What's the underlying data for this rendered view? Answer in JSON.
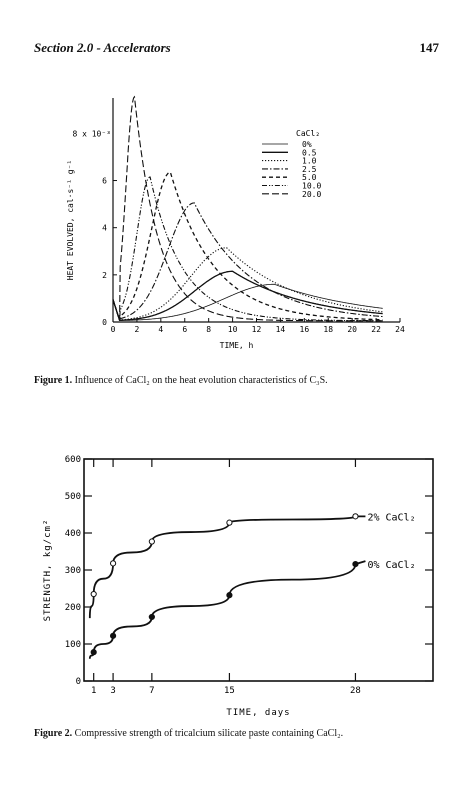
{
  "header": {
    "section": "Section 2.0 - Accelerators",
    "page_number": "147"
  },
  "figure1": {
    "caption_label": "Figure 1.",
    "caption_text": "Influence of CaCl₂ on the heat evolution characteristics of C₃S."
  },
  "figure2": {
    "caption_label": "Figure 2.",
    "caption_text": "Compressive strength of tricalcium silicate paste containing CaCl₂."
  },
  "chart_data": [
    {
      "type": "line",
      "xlabel": "TIME, h",
      "ylabel": "HEAT EVOLVED, cal·s⁻¹ g⁻¹",
      "y_scale_label": "8 x 10⁻³",
      "xlim": [
        0,
        24
      ],
      "ylim": [
        0,
        9.5
      ],
      "x_ticks": [
        0,
        2,
        4,
        6,
        8,
        10,
        12,
        14,
        16,
        18,
        20,
        22,
        24
      ],
      "y_ticks": [
        0,
        2,
        4,
        6
      ],
      "legend_title": "CaCl₂",
      "legend_position": "top-right",
      "series": [
        {
          "name": "0%",
          "style": "solid-thin",
          "peak_x": 13.5,
          "peak_y": 1.55
        },
        {
          "name": "0.5",
          "style": "solid",
          "peak_x": 10.0,
          "peak_y": 2.1
        },
        {
          "name": "1.0",
          "style": "dotted",
          "peak_x": 9.5,
          "peak_y": 3.1
        },
        {
          "name": "2.5",
          "style": "dash-dot",
          "peak_x": 6.8,
          "peak_y": 5.0
        },
        {
          "name": "5.0",
          "style": "dashed",
          "peak_x": 4.8,
          "peak_y": 6.3
        },
        {
          "name": "10.0",
          "style": "dash-dot-dot",
          "peak_x": 3.1,
          "peak_y": 6.1
        },
        {
          "name": "20.0",
          "style": "long-dash",
          "peak_x": 1.8,
          "peak_y": 9.5
        }
      ]
    },
    {
      "type": "line",
      "xlabel": "TIME, days",
      "ylabel": "STRENGTH, kg/cm²",
      "xlim": [
        0,
        36
      ],
      "ylim": [
        0,
        600
      ],
      "x_ticks": [
        1,
        3,
        7,
        15,
        28
      ],
      "y_ticks": [
        0,
        100,
        200,
        300,
        400,
        500,
        600
      ],
      "series": [
        {
          "name": "2% CaCl₂",
          "marker": "open-circle",
          "x": [
            1,
            3,
            7,
            15,
            28
          ],
          "y": [
            235,
            318,
            377,
            428,
            445
          ]
        },
        {
          "name": "0% CaCl₂",
          "marker": "filled-circle",
          "x": [
            1,
            3,
            7,
            15,
            28
          ],
          "y": [
            78,
            122,
            173,
            232,
            316
          ]
        }
      ]
    }
  ]
}
